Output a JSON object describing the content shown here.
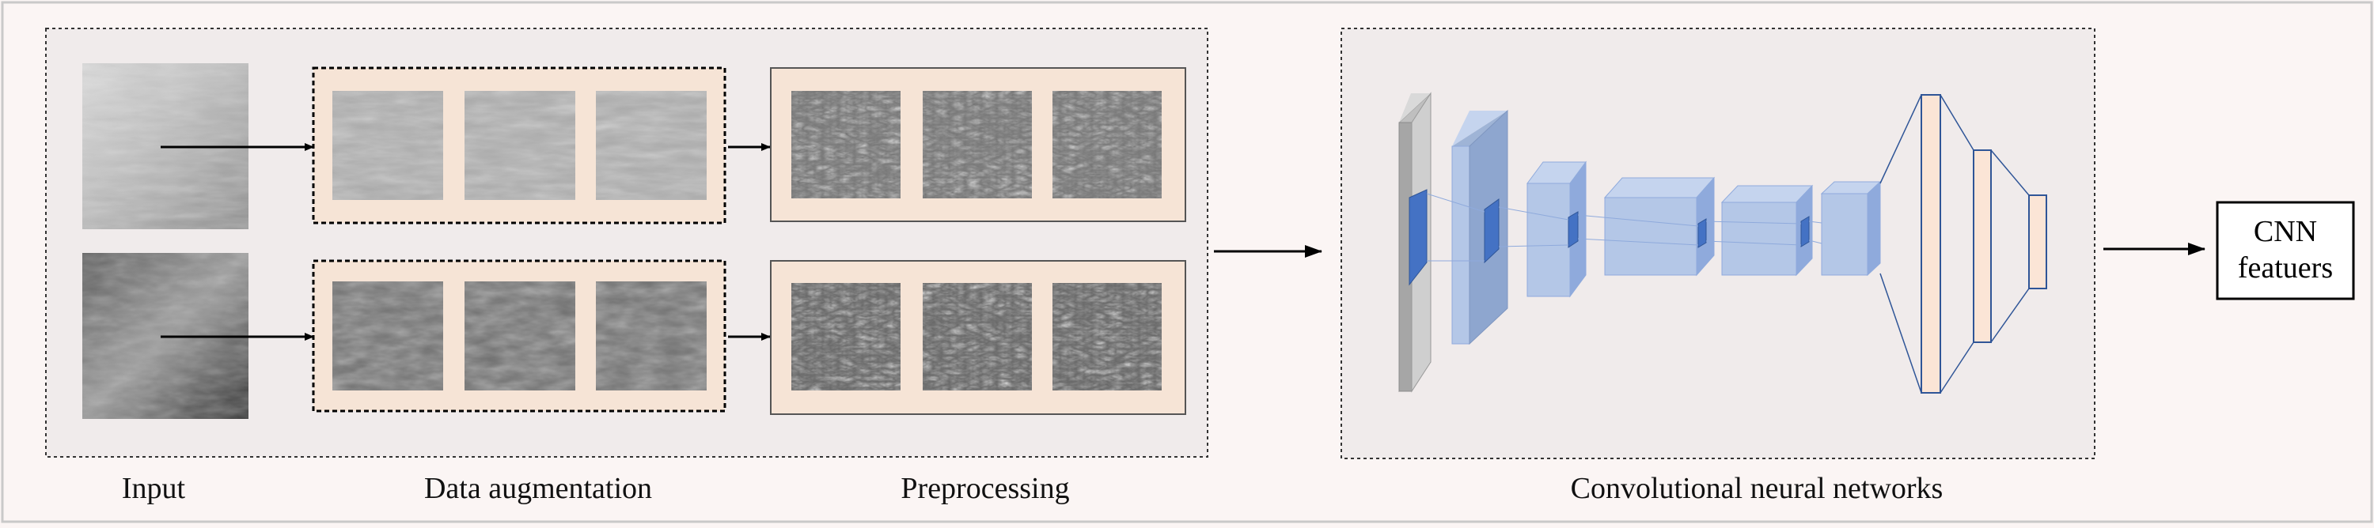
{
  "labels": {
    "input": "Input",
    "augmentation": "Data augmentation",
    "preprocessing": "Preprocessing",
    "cnn": "Convolutional neural networks",
    "output_line1": "CNN",
    "output_line2": "featuers"
  },
  "colors": {
    "background": "#fbf5f4",
    "panel": "#f0ebeb",
    "augment_fill": "#f6e4d6",
    "layer_blue": "#b4c7e7",
    "layer_blue_side": "#8faadc",
    "kernel_blue": "#4472c4",
    "input_layer_gray": "#a6a6a6",
    "fc_fill": "#fbe5d6",
    "fc_stroke": "#2f5597"
  }
}
